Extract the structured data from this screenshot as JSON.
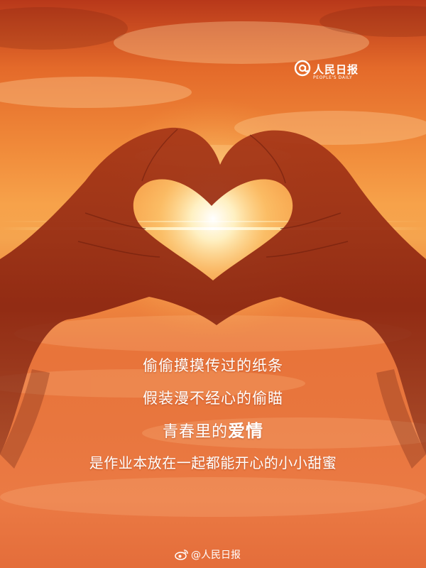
{
  "logo": {
    "name": "人民日报",
    "sub": "PEOPLE'S DAILY"
  },
  "poem": {
    "line1": "偷偷摸摸传过的纸条",
    "line2": "假装漫不经心的偷瞄",
    "line3_prefix": "青春里的",
    "line3_emphasis": "爱情",
    "line4": "是作业本放在一起都能开心的小小甜蜜"
  },
  "watermark": {
    "text": "@人民日报"
  },
  "colors": {
    "sky_top": "#b8381a",
    "sky_mid": "#f7a24a",
    "sun": "#fff6d8",
    "silhouette": "#8a2410",
    "text": "#ffffff"
  }
}
